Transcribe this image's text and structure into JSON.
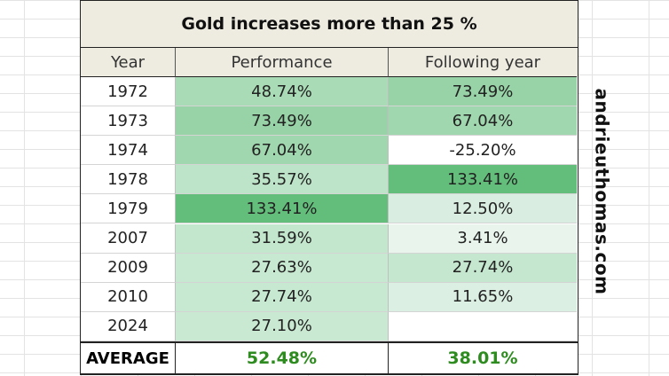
{
  "title": "Gold increases more than 25 %",
  "headers": {
    "year": "Year",
    "performance": "Performance",
    "following": "Following year"
  },
  "rows": [
    {
      "year": "1972",
      "performance": "48.74%",
      "following": "73.49%",
      "perf_color": "#a9dbb6",
      "next_color": "#97d3a6"
    },
    {
      "year": "1973",
      "performance": "73.49%",
      "following": "67.04%",
      "perf_color": "#97d3a6",
      "next_color": "#a0d7ae"
    },
    {
      "year": "1974",
      "performance": "67.04%",
      "following": "-25.20%",
      "perf_color": "#a0d7ae",
      "next_color": "#ffffff"
    },
    {
      "year": "1978",
      "performance": "35.57%",
      "following": "133.41%",
      "perf_color": "#bde4c8",
      "next_color": "#63be7b"
    },
    {
      "year": "1979",
      "performance": "133.41%",
      "following": "12.50%",
      "perf_color": "#63be7b",
      "next_color": "#d9eee0"
    },
    {
      "year": "2007",
      "performance": "31.59%",
      "following": "3.41%",
      "perf_color": "#c3e7cd",
      "next_color": "#e8f4ec"
    },
    {
      "year": "2009",
      "performance": "27.63%",
      "following": "27.74%",
      "perf_color": "#c8e9d1",
      "next_color": "#c5e7cf"
    },
    {
      "year": "2010",
      "performance": "27.74%",
      "following": "11.65%",
      "perf_color": "#c8e9d1",
      "next_color": "#dbefe2"
    },
    {
      "year": "2024",
      "performance": "27.10%",
      "following": "",
      "perf_color": "#c9e9d2",
      "next_color": "#ffffff"
    }
  ],
  "average": {
    "label": "AVERAGE",
    "performance": "52.48%",
    "following": "38.01%"
  },
  "watermark": "andrieuthomas.com",
  "colors": {
    "header_bg": "#eeece1",
    "average_value": "#2e8b1f",
    "max_green": "#63be7b"
  }
}
